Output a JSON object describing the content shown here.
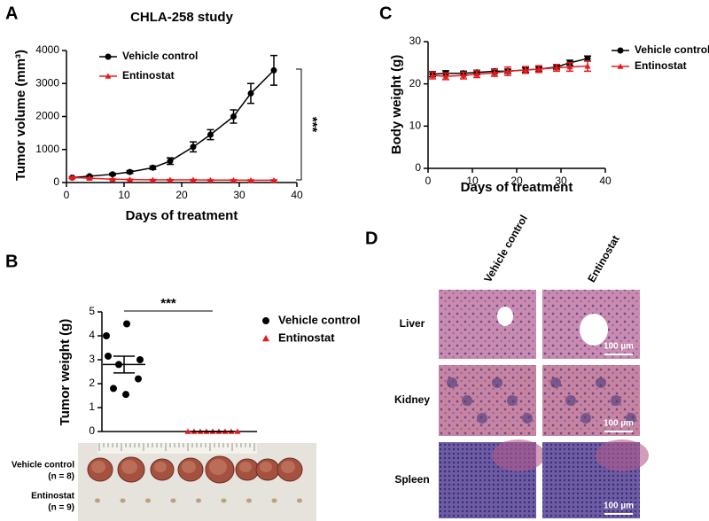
{
  "panel_labels": [
    "A",
    "B",
    "C",
    "D"
  ],
  "chart_data": [
    {
      "type": "line",
      "title": "CHLA-258 study",
      "xlabel": "Days of treatment",
      "ylabel": "Tumor volume (mm³)",
      "x": [
        1,
        4,
        8,
        11,
        15,
        18,
        22,
        25,
        29,
        32,
        36
      ],
      "xlim": [
        0,
        40
      ],
      "xticks": [
        0,
        10,
        20,
        30,
        40
      ],
      "ylim": [
        0,
        4000
      ],
      "yticks": [
        0,
        1000,
        2000,
        3000,
        4000
      ],
      "series": [
        {
          "name": "Vehicle control",
          "color": "#000000",
          "marker": "circle",
          "values": [
            150,
            190,
            250,
            320,
            450,
            650,
            1080,
            1450,
            2000,
            2700,
            3400
          ],
          "errors": [
            20,
            20,
            30,
            40,
            50,
            100,
            150,
            150,
            200,
            300,
            450
          ]
        },
        {
          "name": "Entinostat",
          "color": "#e8191c",
          "marker": "triangle",
          "values": [
            150,
            130,
            100,
            90,
            80,
            80,
            80,
            75,
            75,
            70,
            70
          ],
          "errors": [
            20,
            15,
            10,
            10,
            10,
            10,
            10,
            10,
            10,
            10,
            10
          ]
        }
      ],
      "annotation": "***"
    },
    {
      "type": "line",
      "xlabel": "Days of treatment",
      "ylabel": "Body weight (g)",
      "x": [
        1,
        4,
        8,
        11,
        15,
        18,
        22,
        25,
        29,
        32,
        36
      ],
      "xlim": [
        0,
        40
      ],
      "xticks": [
        0,
        10,
        20,
        30,
        40
      ],
      "ylim": [
        0,
        30
      ],
      "yticks": [
        0,
        10,
        20,
        30
      ],
      "series": [
        {
          "name": "Vehicle control",
          "color": "#000000",
          "marker": "circle",
          "values": [
            22.3,
            22.5,
            22.5,
            22.7,
            23,
            23,
            23.3,
            23.5,
            24,
            25,
            26
          ],
          "errors": [
            0.6,
            0.6,
            0.5,
            0.5,
            0.5,
            0.5,
            0.5,
            0.5,
            0.5,
            0.6,
            0.6
          ]
        },
        {
          "name": "Entinostat",
          "color": "#e8191c",
          "marker": "triangle",
          "values": [
            22,
            21.8,
            22,
            22.3,
            22.6,
            23,
            23.3,
            23.5,
            23.8,
            24,
            24.2
          ],
          "errors": [
            0.8,
            0.8,
            0.8,
            0.8,
            0.8,
            1.0,
            0.8,
            0.8,
            0.8,
            1.0,
            1.2
          ]
        }
      ]
    },
    {
      "type": "dot",
      "ylabel": "Tumor weight (g)",
      "ylim": [
        0,
        5
      ],
      "yticks": [
        0,
        1,
        2,
        3,
        4,
        5
      ],
      "series": [
        {
          "name": "Vehicle control",
          "color": "#000000",
          "marker": "circle",
          "values": [
            4.5,
            4.0,
            3.15,
            3.0,
            2.8,
            2.2,
            1.8,
            1.55
          ],
          "mean": 2.8,
          "error": 0.35
        },
        {
          "name": "Entinostat",
          "color": "#e8191c",
          "marker": "triangle",
          "values": [
            0,
            0,
            0,
            0,
            0,
            0,
            0,
            0,
            0
          ],
          "mean": 0,
          "error": 0
        }
      ],
      "annotation": "***"
    }
  ],
  "photo": {
    "rows": [
      {
        "label": "Vehicle control",
        "n": "(n = 8)"
      },
      {
        "label": "Entinostat",
        "n": "(n = 9)"
      }
    ]
  },
  "histology": {
    "columns": [
      "Vehicle control",
      "Entinostat"
    ],
    "rows": [
      "Liver",
      "Kidney",
      "Spleen"
    ],
    "scale_bar": "100 µm"
  }
}
